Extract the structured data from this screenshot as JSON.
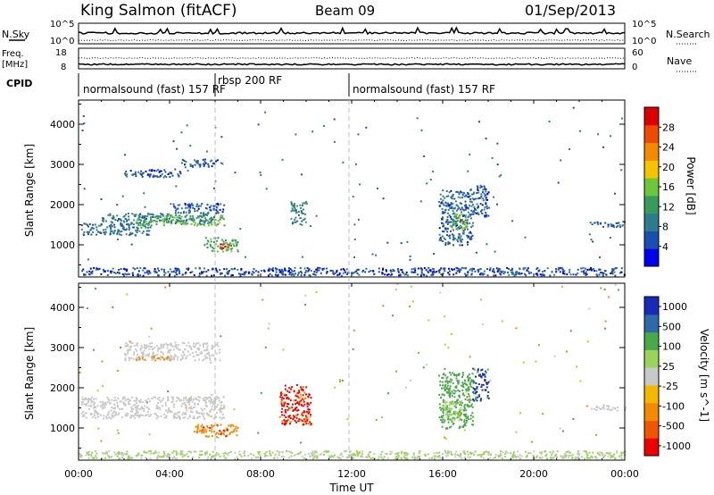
{
  "header": {
    "station": "King Salmon (fitACF)",
    "beam": "Beam 09",
    "date": "01/Sep/2013"
  },
  "nsky_panel": {
    "left_label": "N.Sky",
    "right_label": "N.Search",
    "left_ticks": [
      "10^5",
      "10^0"
    ],
    "right_ticks": [
      "10^5",
      "10^0"
    ]
  },
  "freq_panel": {
    "left_label_1": "Freq.",
    "left_label_2": "[MHz]",
    "right_label": "Nave",
    "left_ticks": [
      "18",
      "8"
    ],
    "right_ticks": [
      "60",
      "0"
    ]
  },
  "cpid": {
    "label": "CPID",
    "modes": [
      {
        "text": "normalsound (fast) 157 RF"
      },
      {
        "text": "rbsp 200 RF"
      },
      {
        "text": "normalsound (fast) 157 RF"
      }
    ]
  },
  "x_axis": {
    "label": "Time UT",
    "ticks": [
      "00:00",
      "04:00",
      "08:00",
      "12:00",
      "16:00",
      "20:00",
      "00:00"
    ]
  },
  "colors": {
    "power": [
      "#0000ee",
      "#1a4fb0",
      "#2e7a8e",
      "#3a9a5a",
      "#6ec63c",
      "#f5c400",
      "#f58a00",
      "#ee4a00",
      "#dd0000"
    ],
    "velocity": [
      "#ee0000",
      "#f05500",
      "#f58a00",
      "#f5b800",
      "#c8c8c8",
      "#9ad45a",
      "#4aa84a",
      "#2e6aa8",
      "#1a2ab8"
    ]
  },
  "chart_data": [
    {
      "type": "heatmap",
      "name": "power",
      "title": "",
      "xlabel": "",
      "ylabel": "Slant Range [km]",
      "y_ticks": [
        "1000",
        "2000",
        "3000",
        "4000"
      ],
      "xlim": [
        0,
        24
      ],
      "ylim": [
        200,
        4600
      ],
      "colorbar": {
        "label": "Power [dB]",
        "ticks": [
          "4",
          "8",
          "12",
          "16",
          "20",
          "24",
          "28"
        ],
        "range": [
          0,
          32
        ]
      },
      "regions": [
        {
          "t0": 0.1,
          "t1": 3.2,
          "r0": 1250,
          "r1": 1550,
          "value": 8
        },
        {
          "t0": 1.0,
          "t1": 6.0,
          "r0": 1550,
          "r1": 1800,
          "value": 9
        },
        {
          "t0": 2.5,
          "t1": 6.4,
          "r0": 1500,
          "r1": 1750,
          "value": 14
        },
        {
          "t0": 4.0,
          "t1": 6.4,
          "r0": 1800,
          "r1": 2050,
          "value": 6
        },
        {
          "t0": 2.0,
          "t1": 4.5,
          "r0": 2700,
          "r1": 2900,
          "value": 6
        },
        {
          "t0": 4.5,
          "t1": 6.3,
          "r0": 2950,
          "r1": 3150,
          "value": 6
        },
        {
          "t0": 5.5,
          "t1": 7.0,
          "r0": 850,
          "r1": 1200,
          "value": 14
        },
        {
          "t0": 6.1,
          "t1": 6.6,
          "r0": 900,
          "r1": 1050,
          "value": 27
        },
        {
          "t0": 9.3,
          "t1": 10.0,
          "r0": 1500,
          "r1": 2100,
          "value": 10
        },
        {
          "t0": 15.8,
          "t1": 17.3,
          "r0": 1000,
          "r1": 2400,
          "value": 7
        },
        {
          "t0": 16.3,
          "t1": 17.0,
          "r0": 1400,
          "r1": 1800,
          "value": 16
        },
        {
          "t0": 17.3,
          "t1": 18.0,
          "r0": 1700,
          "r1": 2500,
          "value": 6
        },
        {
          "t0": 22.5,
          "t1": 24.0,
          "r0": 1450,
          "r1": 1600,
          "value": 6
        },
        {
          "t0": 0.0,
          "t1": 24.0,
          "r0": 250,
          "r1": 450,
          "value": 5
        }
      ]
    },
    {
      "type": "heatmap",
      "name": "velocity",
      "title": "",
      "xlabel": "Time UT",
      "ylabel": "Slant Range [km]",
      "y_ticks": [
        "1000",
        "2000",
        "3000",
        "4000"
      ],
      "xlim": [
        0,
        24
      ],
      "ylim": [
        200,
        4600
      ],
      "colorbar": {
        "label": "Velocity [m s^-1]",
        "ticks": [
          "1000",
          "500",
          "100",
          "25",
          "-25",
          "-100",
          "-500",
          "-1000"
        ],
        "range": [
          -1000,
          1000
        ]
      },
      "regions": [
        {
          "t0": 0.1,
          "t1": 6.4,
          "r0": 1250,
          "r1": 1800,
          "value": 0
        },
        {
          "t0": 2.0,
          "t1": 6.2,
          "r0": 2700,
          "r1": 3150,
          "value": 0
        },
        {
          "t0": 2.5,
          "t1": 4.0,
          "r0": 2700,
          "r1": 2800,
          "value": -300
        },
        {
          "t0": 5.0,
          "t1": 7.0,
          "r0": 800,
          "r1": 1100,
          "value": -400
        },
        {
          "t0": 8.8,
          "t1": 10.2,
          "r0": 1100,
          "r1": 2100,
          "value": -600
        },
        {
          "t0": 15.8,
          "t1": 17.3,
          "r0": 1000,
          "r1": 2400,
          "value": 200
        },
        {
          "t0": 16.0,
          "t1": 16.8,
          "r0": 1200,
          "r1": 1700,
          "value": 80
        },
        {
          "t0": 17.3,
          "t1": 18.0,
          "r0": 1700,
          "r1": 2500,
          "value": 600
        },
        {
          "t0": 22.5,
          "t1": 24.0,
          "r0": 1450,
          "r1": 1600,
          "value": 0
        },
        {
          "t0": 0.0,
          "t1": 24.0,
          "r0": 250,
          "r1": 450,
          "value": 30
        }
      ]
    }
  ]
}
